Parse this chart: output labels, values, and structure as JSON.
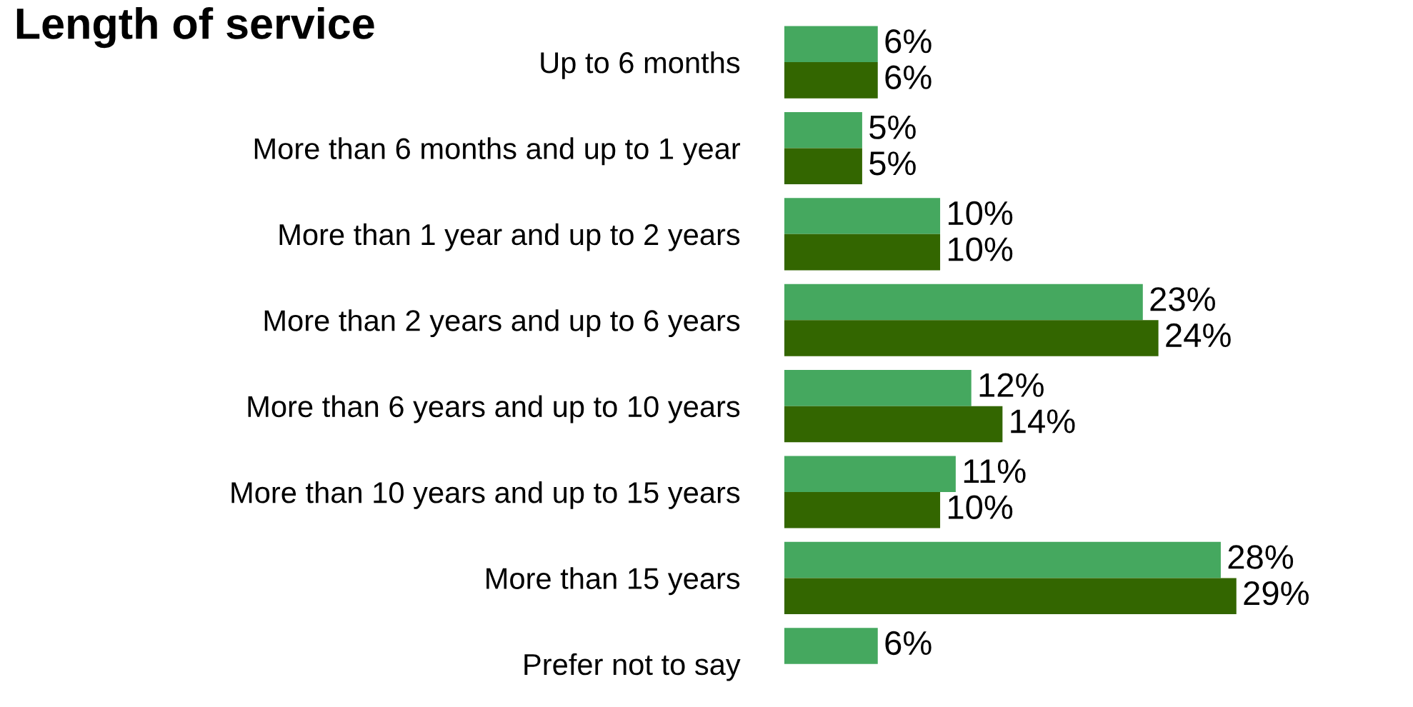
{
  "chart_data": {
    "type": "bar",
    "orientation": "horizontal",
    "title": "Length of service",
    "tick_labels": "y",
    "grid": false,
    "legend": false,
    "categories": [
      "Up to 6 months",
      "More than 6 months and up to 1 year",
      "More than 1 year and up to 2 years",
      "More than 2 years and up to 6 years",
      "More than 6 years and up to 10 years",
      "More than 10 years and up to 15 years",
      "More than 15 years",
      "Prefer not to say"
    ],
    "series": [
      {
        "color": "#45a85f",
        "values": [
          6,
          5,
          10,
          23,
          12,
          11,
          28,
          6
        ],
        "value_labels": [
          "6%",
          "5%",
          "10%",
          "23%",
          "12%",
          "11%",
          "28%",
          "6%"
        ]
      },
      {
        "color": "#336600",
        "values": [
          6,
          5,
          10,
          24,
          14,
          10,
          29,
          null
        ],
        "value_labels": [
          "6%",
          "5%",
          "10%",
          "24%",
          "14%",
          "10%",
          "29%",
          null
        ]
      }
    ]
  }
}
